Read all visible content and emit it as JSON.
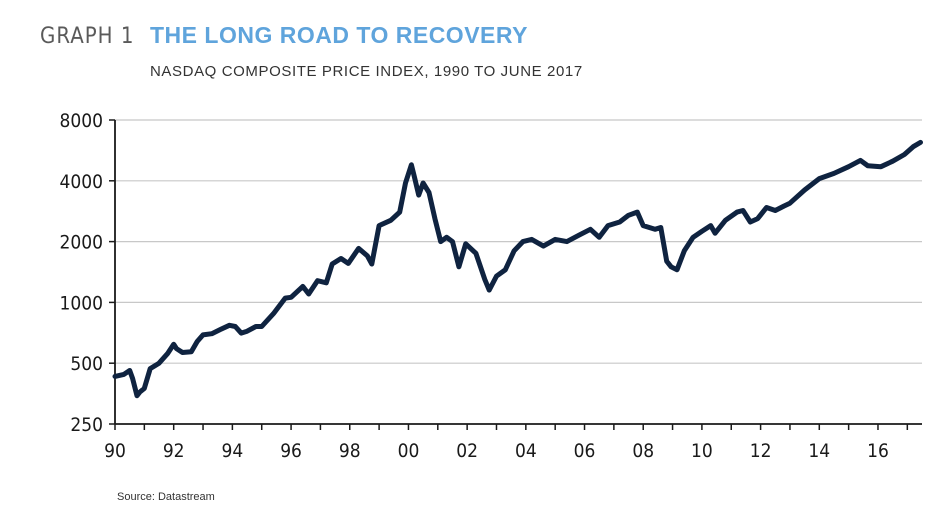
{
  "header": {
    "graph_label": "GRAPH 1",
    "title": "THE LONG ROAD TO RECOVERY",
    "subtitle": "NASDAQ COMPOSITE PRICE INDEX, 1990 TO JUNE 2017"
  },
  "source": "Source: Datastream",
  "colors": {
    "title": "#5fa4dc",
    "line": "#0f2340",
    "grid": "#c8c8c8"
  },
  "chart_data": {
    "type": "line",
    "title": "THE LONG ROAD TO RECOVERY",
    "subtitle": "NASDAQ COMPOSITE PRICE INDEX, 1990 TO JUNE 2017",
    "xlabel": "",
    "ylabel": "",
    "y_scale": "log",
    "ylim": [
      250,
      8000
    ],
    "xlim": [
      1990,
      2017.5
    ],
    "yticks": [
      250,
      500,
      1000,
      2000,
      4000,
      8000
    ],
    "ytick_labels": [
      "250",
      "500",
      "1000",
      "2000",
      "4000",
      "8000"
    ],
    "xticks": [
      1990,
      1992,
      1994,
      1996,
      1998,
      2000,
      2002,
      2004,
      2006,
      2008,
      2010,
      2012,
      2014,
      2016
    ],
    "xtick_labels": [
      "90",
      "92",
      "94",
      "96",
      "98",
      "00",
      "02",
      "04",
      "06",
      "08",
      "10",
      "12",
      "14",
      "16"
    ],
    "grid": true,
    "series": [
      {
        "x": [
          1990.0,
          1990.3,
          1990.5,
          1990.6,
          1990.75,
          1990.85,
          1991.0,
          1991.2,
          1991.5,
          1991.8,
          1992.0,
          1992.1,
          1992.3,
          1992.6,
          1992.8,
          1993.0,
          1993.3,
          1993.6,
          1993.9,
          1994.1,
          1994.3,
          1994.5,
          1994.8,
          1995.0,
          1995.4,
          1995.8,
          1996.0,
          1996.4,
          1996.6,
          1996.9,
          1997.2,
          1997.4,
          1997.7,
          1997.95,
          1998.3,
          1998.6,
          1998.75,
          1999.0,
          1999.4,
          1999.7,
          1999.9,
          2000.1,
          2000.2,
          2000.35,
          2000.5,
          2000.7,
          2000.9,
          2001.1,
          2001.3,
          2001.5,
          2001.72,
          2001.95,
          2002.3,
          2002.6,
          2002.75,
          2003.0,
          2003.3,
          2003.6,
          2003.9,
          2004.2,
          2004.6,
          2005.0,
          2005.4,
          2005.8,
          2006.2,
          2006.5,
          2006.8,
          2007.2,
          2007.5,
          2007.8,
          2008.0,
          2008.4,
          2008.6,
          2008.8,
          2008.95,
          2009.15,
          2009.4,
          2009.7,
          2010.0,
          2010.3,
          2010.45,
          2010.8,
          2011.2,
          2011.4,
          2011.65,
          2011.9,
          2012.2,
          2012.5,
          2012.8,
          2013.0,
          2013.5,
          2014.0,
          2014.5,
          2015.0,
          2015.4,
          2015.65,
          2016.1,
          2016.5,
          2016.9,
          2017.2,
          2017.45
        ],
        "values": [
          430,
          440,
          460,
          420,
          345,
          360,
          375,
          470,
          500,
          560,
          620,
          590,
          565,
          570,
          640,
          690,
          700,
          735,
          770,
          760,
          705,
          720,
          760,
          760,
          880,
          1050,
          1060,
          1200,
          1100,
          1280,
          1250,
          1550,
          1650,
          1560,
          1850,
          1700,
          1550,
          2400,
          2550,
          2800,
          3900,
          4800,
          4200,
          3400,
          3900,
          3500,
          2600,
          2000,
          2100,
          2000,
          1500,
          1950,
          1750,
          1300,
          1150,
          1350,
          1450,
          1800,
          2000,
          2050,
          1900,
          2050,
          2000,
          2150,
          2300,
          2100,
          2400,
          2500,
          2700,
          2800,
          2400,
          2300,
          2350,
          1600,
          1500,
          1450,
          1800,
          2100,
          2250,
          2400,
          2200,
          2550,
          2800,
          2850,
          2500,
          2600,
          2950,
          2850,
          3000,
          3100,
          3600,
          4100,
          4350,
          4700,
          5050,
          4750,
          4700,
          5000,
          5400,
          5900,
          6200
        ]
      }
    ],
    "source": "Source: Datastream"
  }
}
